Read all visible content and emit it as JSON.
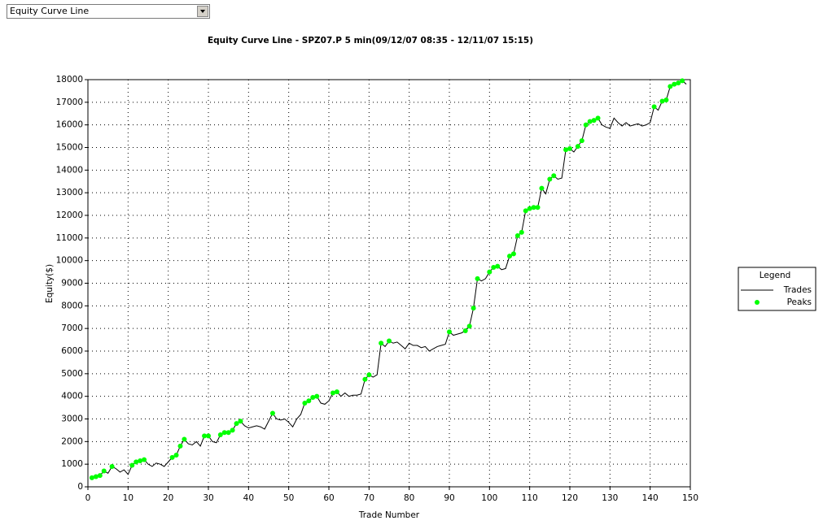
{
  "dropdown": {
    "selected": "Equity Curve Line"
  },
  "chart_data": {
    "type": "line",
    "title": "Equity Curve Line - SPZ07.P 5 min(09/12/07 08:35 - 12/11/07 15:15)",
    "x_label": "Trade Number",
    "y_label": "Equity($)",
    "xlim": [
      0,
      150
    ],
    "xticks": [
      0,
      10,
      20,
      30,
      40,
      50,
      60,
      70,
      80,
      90,
      100,
      110,
      120,
      130,
      140,
      150
    ],
    "ylim": [
      0,
      18000
    ],
    "yticks": [
      0,
      1000,
      2000,
      3000,
      4000,
      5000,
      6000,
      7000,
      8000,
      9000,
      10000,
      11000,
      12000,
      13000,
      14000,
      15000,
      16000,
      17000,
      18000
    ],
    "grid": true,
    "legend": "right",
    "legend_title": "Legend",
    "series": [
      {
        "name": "Trades",
        "type": "line",
        "color": "#000000",
        "x": [
          1,
          2,
          3,
          4,
          5,
          6,
          7,
          8,
          9,
          10,
          11,
          12,
          13,
          14,
          15,
          16,
          17,
          18,
          19,
          20,
          21,
          22,
          23,
          24,
          25,
          26,
          27,
          28,
          29,
          30,
          31,
          32,
          33,
          34,
          35,
          36,
          37,
          38,
          39,
          40,
          41,
          42,
          43,
          44,
          45,
          46,
          47,
          48,
          49,
          50,
          51,
          52,
          53,
          54,
          55,
          56,
          57,
          58,
          59,
          60,
          61,
          62,
          63,
          64,
          65,
          66,
          67,
          68,
          69,
          70,
          71,
          72,
          73,
          74,
          75,
          76,
          77,
          78,
          79,
          80,
          81,
          82,
          83,
          84,
          85,
          86,
          87,
          88,
          89,
          90,
          91,
          92,
          93,
          94,
          95,
          96,
          97,
          98,
          99,
          100,
          101,
          102,
          103,
          104,
          105,
          106,
          107,
          108,
          109,
          110,
          111,
          112,
          113,
          114,
          115,
          116,
          117,
          118,
          119,
          120,
          121,
          122,
          123,
          124,
          125,
          126,
          127,
          128,
          129,
          130,
          131,
          132,
          133,
          134,
          135,
          136,
          137,
          138,
          139,
          140,
          141,
          142,
          143,
          144,
          145,
          146,
          147,
          148,
          149
        ],
        "values": [
          400,
          450,
          500,
          700,
          600,
          900,
          800,
          650,
          750,
          550,
          950,
          1100,
          1150,
          1200,
          1000,
          900,
          1050,
          1000,
          900,
          1100,
          1300,
          1400,
          1800,
          2100,
          1900,
          1850,
          2000,
          1800,
          2250,
          2250,
          2000,
          1950,
          2300,
          2400,
          2400,
          2500,
          2800,
          2900,
          2700,
          2600,
          2650,
          2700,
          2650,
          2550,
          2900,
          3250,
          3000,
          2950,
          3000,
          2850,
          2650,
          3000,
          3200,
          3700,
          3800,
          3950,
          4000,
          3700,
          3650,
          3800,
          4150,
          4200,
          4000,
          4150,
          4000,
          4050,
          4050,
          4100,
          4750,
          4950,
          4850,
          4950,
          6350,
          6200,
          6450,
          6350,
          6400,
          6250,
          6100,
          6350,
          6250,
          6250,
          6150,
          6200,
          6000,
          6100,
          6200,
          6250,
          6300,
          6850,
          6700,
          6750,
          6800,
          6900,
          7100,
          7900,
          9200,
          9100,
          9200,
          9500,
          9700,
          9750,
          9600,
          9650,
          10200,
          10300,
          11100,
          11250,
          12200,
          12300,
          12350,
          12350,
          13200,
          12950,
          13600,
          13750,
          13600,
          13650,
          14900,
          14950,
          14800,
          15050,
          15300,
          16000,
          16150,
          16200,
          16300,
          16000,
          15900,
          15850,
          16300,
          16100,
          15950,
          16100,
          15950,
          16000,
          16050,
          15950,
          16000,
          16100,
          16800,
          16650,
          17050,
          17100,
          17700,
          17800,
          17850,
          17950,
          17800
        ]
      },
      {
        "name": "Peaks",
        "type": "scatter",
        "color": "#00ff00",
        "x": [
          1,
          2,
          3,
          4,
          6,
          11,
          12,
          13,
          14,
          21,
          22,
          23,
          24,
          29,
          30,
          33,
          34,
          35,
          36,
          37,
          38,
          46,
          54,
          55,
          56,
          57,
          61,
          62,
          69,
          70,
          73,
          75,
          90,
          94,
          95,
          96,
          97,
          100,
          101,
          102,
          105,
          106,
          107,
          108,
          109,
          110,
          111,
          112,
          113,
          115,
          116,
          119,
          120,
          122,
          123,
          124,
          125,
          126,
          127,
          141,
          143,
          144,
          145,
          146,
          147,
          148
        ],
        "values": [
          400,
          450,
          500,
          700,
          900,
          950,
          1100,
          1150,
          1200,
          1300,
          1400,
          1800,
          2100,
          2250,
          2250,
          2300,
          2400,
          2400,
          2500,
          2800,
          2900,
          3250,
          3700,
          3800,
          3950,
          4000,
          4150,
          4200,
          4750,
          4950,
          6350,
          6450,
          6850,
          6900,
          7100,
          7900,
          9200,
          9500,
          9700,
          9750,
          10200,
          10300,
          11100,
          11250,
          12200,
          12300,
          12350,
          12350,
          13200,
          13600,
          13750,
          14900,
          14950,
          15050,
          15300,
          16000,
          16150,
          16200,
          16300,
          16800,
          17050,
          17100,
          17700,
          17800,
          17850,
          17950
        ]
      }
    ]
  }
}
